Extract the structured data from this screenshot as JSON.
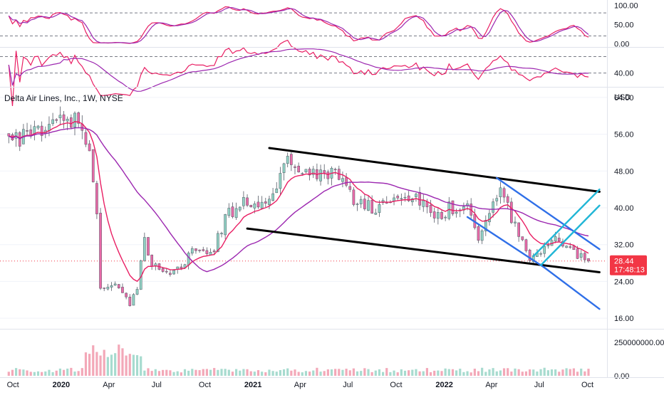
{
  "symbol_title": "Delta Air Lines, Inc., 1W, NYSE",
  "currency": "USD",
  "last_price": "28.44",
  "countdown": "17:48:13",
  "colors": {
    "up": "#26a69a",
    "down": "#ef5350",
    "up_candle": "#8fd1c3",
    "down_candle": "#e86aa8",
    "ema_fast": "#e91e63",
    "sma_slow": "#9c27b0",
    "trend": "#000000",
    "fork_blue": "#2f6fe8",
    "fork_cyan": "#21b6d6",
    "price_tag": "#f23645"
  },
  "chart_data": [
    {
      "type": "line",
      "panel": "stochastic",
      "y_ticks": [
        "100.00",
        "50.00",
        "0.00"
      ],
      "ylim": [
        -5,
        110
      ],
      "reference_levels": [
        80,
        20
      ],
      "series": []
    },
    {
      "type": "line",
      "panel": "rsi",
      "y_ticks": [
        "40.00"
      ],
      "ylim": [
        25,
        70
      ],
      "reference_levels": [
        60,
        40
      ],
      "series": []
    },
    {
      "type": "candlestick",
      "panel": "price",
      "x_ticks": [
        "Oct",
        "2020",
        "Apr",
        "Jul",
        "Oct",
        "2021",
        "Apr",
        "Jul",
        "Oct",
        "2022",
        "Apr",
        "Jul",
        "Oct"
      ],
      "y_ticks": [
        "64.00",
        "56.00",
        "48.00",
        "40.00",
        "32.00",
        "24.00",
        "16.00"
      ],
      "ylim": [
        14,
        66
      ],
      "x_anchors": [
        {
          "date": "2019-09-23",
          "price": 57
        },
        {
          "date": "2019-10-14",
          "price": 55
        },
        {
          "date": "2019-11-11",
          "price": 56
        },
        {
          "date": "2019-12-16",
          "price": 58
        },
        {
          "date": "2020-01-13",
          "price": 60
        },
        {
          "date": "2020-02-10",
          "price": 58
        },
        {
          "date": "2020-02-24",
          "price": 53
        },
        {
          "date": "2020-03-09",
          "price": 40
        },
        {
          "date": "2020-03-16",
          "price": 22
        },
        {
          "date": "2020-04-13",
          "price": 24
        },
        {
          "date": "2020-05-11",
          "price": 19
        },
        {
          "date": "2020-05-25",
          "price": 23
        },
        {
          "date": "2020-06-08",
          "price": 33
        },
        {
          "date": "2020-06-22",
          "price": 28
        },
        {
          "date": "2020-08-03",
          "price": 26
        },
        {
          "date": "2020-09-14",
          "price": 31
        },
        {
          "date": "2020-10-19",
          "price": 31
        },
        {
          "date": "2020-11-09",
          "price": 38
        },
        {
          "date": "2020-12-14",
          "price": 41
        },
        {
          "date": "2021-01-18",
          "price": 40
        },
        {
          "date": "2021-03-08",
          "price": 50
        },
        {
          "date": "2021-04-19",
          "price": 47
        },
        {
          "date": "2021-06-07",
          "price": 47
        },
        {
          "date": "2021-07-19",
          "price": 41
        },
        {
          "date": "2021-08-23",
          "price": 40
        },
        {
          "date": "2021-10-11",
          "price": 43
        },
        {
          "date": "2021-11-15",
          "price": 42
        },
        {
          "date": "2021-12-13",
          "price": 37
        },
        {
          "date": "2022-01-10",
          "price": 40
        },
        {
          "date": "2022-02-14",
          "price": 40
        },
        {
          "date": "2022-03-07",
          "price": 33
        },
        {
          "date": "2022-03-28",
          "price": 40
        },
        {
          "date": "2022-04-18",
          "price": 44
        },
        {
          "date": "2022-05-09",
          "price": 38
        },
        {
          "date": "2022-06-13",
          "price": 29
        },
        {
          "date": "2022-07-04",
          "price": 31
        },
        {
          "date": "2022-08-01",
          "price": 34
        },
        {
          "date": "2022-08-29",
          "price": 31
        },
        {
          "date": "2022-10-03",
          "price": 28.44
        }
      ],
      "drawings": [
        {
          "name": "upper-channel-line",
          "from": {
            "date": "2021-02-01",
            "price": 53
          },
          "to": {
            "date": "2022-10-24",
            "price": 43.5
          },
          "color": "#000000"
        },
        {
          "name": "lower-channel-line",
          "from": {
            "date": "2020-12-21",
            "price": 35.5
          },
          "to": {
            "date": "2022-10-24",
            "price": 26
          },
          "color": "#000000"
        },
        {
          "name": "fork-median-line",
          "from": {
            "date": "2022-04-11",
            "price": 46.5
          },
          "to": {
            "date": "2022-10-24",
            "price": 31
          },
          "color": "#2f6fe8"
        },
        {
          "name": "fork-lower-line",
          "from": {
            "date": "2022-02-14",
            "price": 38
          },
          "to": {
            "date": "2022-07-11",
            "price": 27
          },
          "color": "#2f6fe8"
        },
        {
          "name": "fork-lower-extension",
          "from": {
            "date": "2022-07-11",
            "price": 27
          },
          "to": {
            "date": "2022-10-24",
            "price": 18
          },
          "color": "#2f6fe8"
        },
        {
          "name": "cyan-upper-line",
          "from": {
            "date": "2022-06-20",
            "price": 29.5
          },
          "to": {
            "date": "2022-10-24",
            "price": 44
          },
          "color": "#21b6d6"
        },
        {
          "name": "cyan-lower-line",
          "from": {
            "date": "2022-07-04",
            "price": 27.5
          },
          "to": {
            "date": "2022-10-24",
            "price": 40.5
          },
          "color": "#21b6d6"
        }
      ]
    },
    {
      "type": "bar",
      "panel": "volume",
      "y_ticks": [
        "250000000.00",
        "0.00"
      ],
      "ylim": [
        0,
        340000000
      ],
      "series": []
    }
  ]
}
